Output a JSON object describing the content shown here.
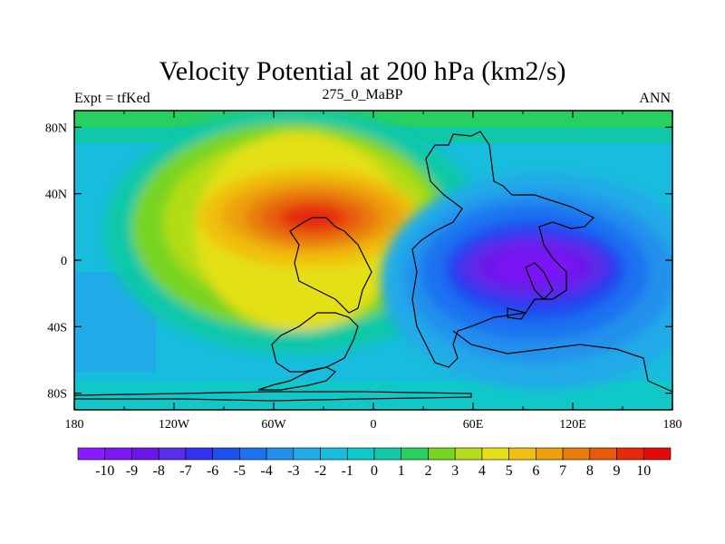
{
  "chart_data": {
    "type": "heatmap",
    "title": "Velocity Potential at 200 hPa (km2/s)",
    "left_label": "Expt = tfKed",
    "center_label": "275_0_MaBP",
    "right_label": "ANN",
    "x_ticks": [
      "180",
      "120W",
      "60W",
      "0",
      "60E",
      "120E",
      "180"
    ],
    "y_ticks": [
      "80N",
      "40N",
      "0",
      "40S",
      "80S"
    ],
    "xlim": [
      -180,
      180
    ],
    "ylim": [
      -90,
      90
    ],
    "colorbar_labels": [
      "-10",
      "-9",
      "-8",
      "-7",
      "-6",
      "-5",
      "-4",
      "-3",
      "-2",
      "-1",
      "0",
      "1",
      "2",
      "3",
      "4",
      "5",
      "6",
      "7",
      "8",
      "9",
      "10"
    ],
    "colorbar_colors": [
      "#8a1aff",
      "#7a18f4",
      "#6c16ea",
      "#5a2ee8",
      "#3232f0",
      "#1e50f0",
      "#1e72f0",
      "#2090ec",
      "#20aae8",
      "#18bcdc",
      "#10c8c8",
      "#10c8a8",
      "#28d060",
      "#78d420",
      "#b4dc18",
      "#e4e018",
      "#f0c010",
      "#eca00a",
      "#e87c0a",
      "#e85a0a",
      "#e42a0a",
      "#e40a0a"
    ],
    "features": [
      {
        "label": "maximum",
        "lon": -30,
        "lat": 22,
        "value": 10
      },
      {
        "label": "minimum",
        "lon": 100,
        "lat": -5,
        "value": -10
      }
    ]
  }
}
